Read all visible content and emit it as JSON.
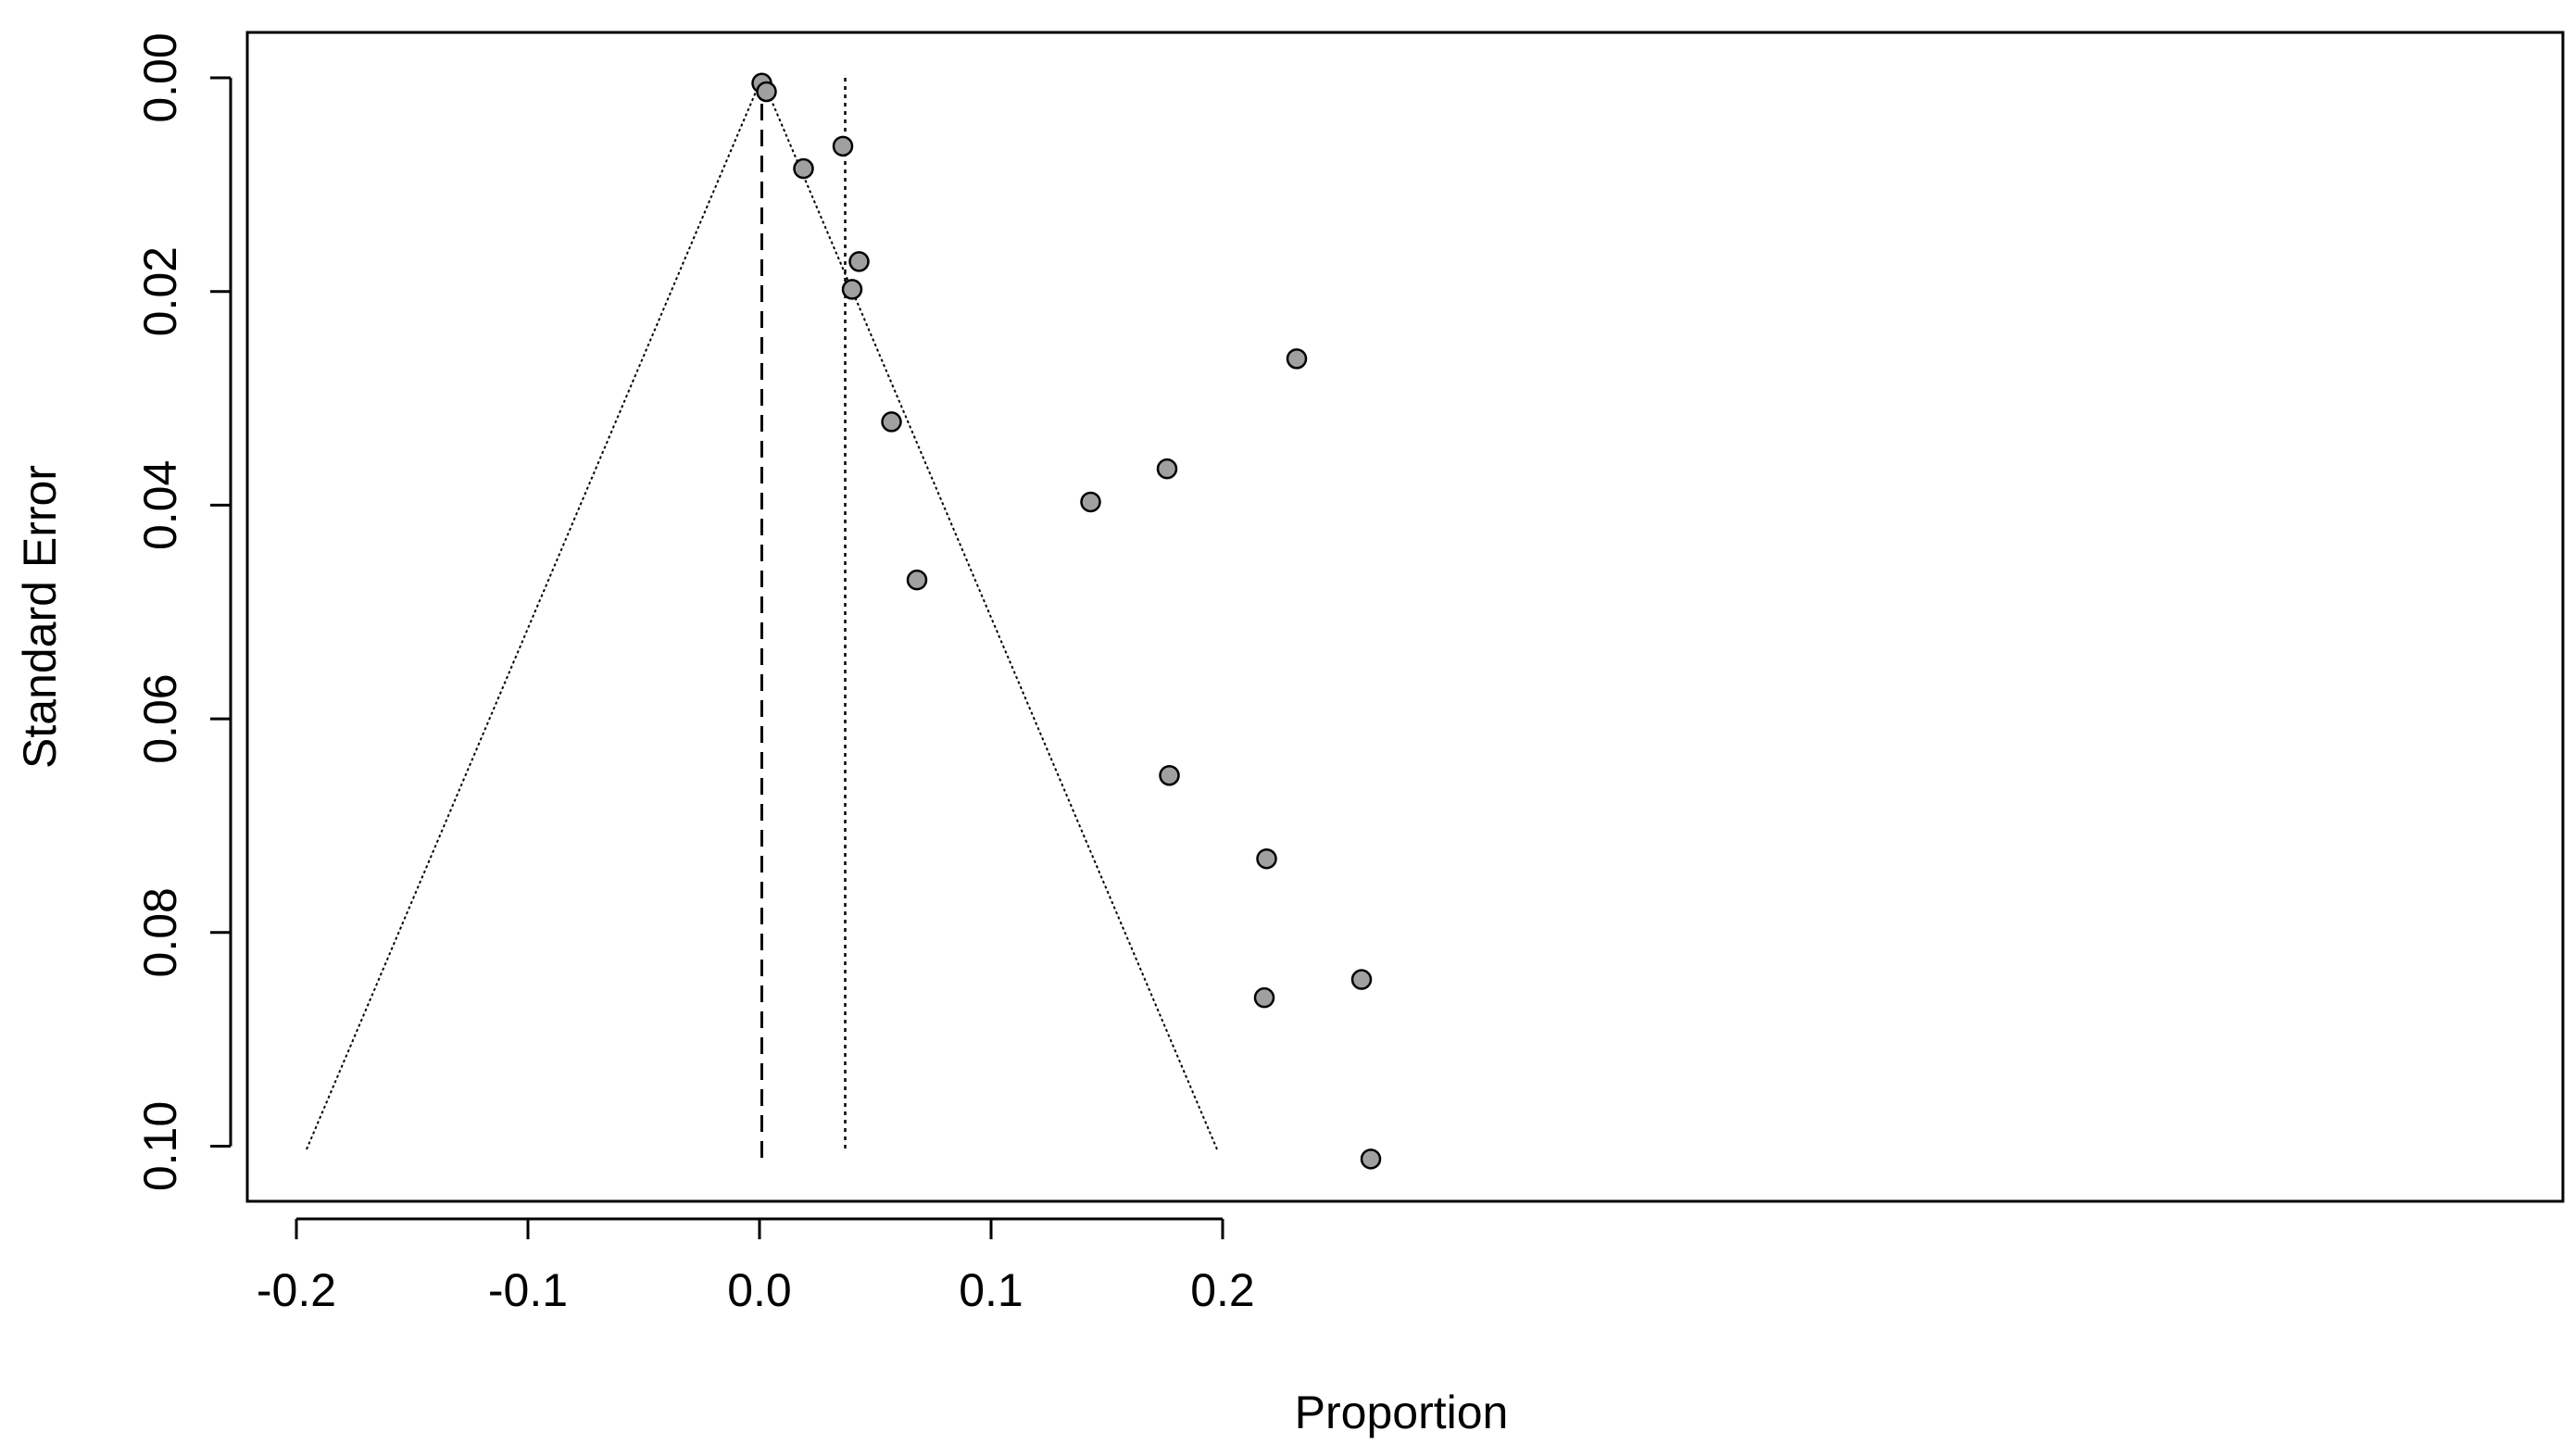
{
  "chart_data": {
    "type": "scatter",
    "subtype": "funnel-plot",
    "title": "",
    "xlabel": "Proportion",
    "ylabel": "Standard Error",
    "xlim": [
      -0.21,
      0.288
    ],
    "ylim": [
      0.104,
      -0.004
    ],
    "y_axis_reversed": true,
    "x_ticks": [
      -0.2,
      -0.1,
      0.0,
      0.1,
      0.2
    ],
    "x_tick_labels": [
      "-0.2",
      "-0.1",
      "0.0",
      "0.1",
      "0.2"
    ],
    "y_ticks": [
      0.0,
      0.02,
      0.04,
      0.06,
      0.08,
      0.1
    ],
    "y_tick_labels": [
      "0.00",
      "0.02",
      "0.04",
      "0.06",
      "0.08",
      "0.10"
    ],
    "grid": false,
    "legend": "none",
    "points": {
      "x": [
        0.001,
        0.003,
        0.019,
        0.036,
        0.043,
        0.04,
        0.057,
        0.068,
        0.143,
        0.176,
        0.232,
        0.177,
        0.219,
        0.218,
        0.26,
        0.264
      ],
      "y": [
        0.0005,
        0.0013,
        0.0085,
        0.0064,
        0.0172,
        0.0198,
        0.0322,
        0.047,
        0.0397,
        0.0366,
        0.0263,
        0.0653,
        0.0731,
        0.0861,
        0.0844,
        0.1012
      ]
    },
    "fixed_effect_line": {
      "x": 0.001,
      "style": "dashed"
    },
    "random_effect_line": {
      "x": 0.037,
      "style": "dotted"
    },
    "funnel": {
      "apex": [
        0.001,
        0.0
      ],
      "left_base": [
        -0.196,
        0.1005
      ],
      "right_base": [
        0.198,
        0.1005
      ],
      "style": "dotted"
    },
    "colors": {
      "point_fill": "#a0a0a0",
      "point_stroke": "#000000",
      "axis": "#000000"
    }
  }
}
